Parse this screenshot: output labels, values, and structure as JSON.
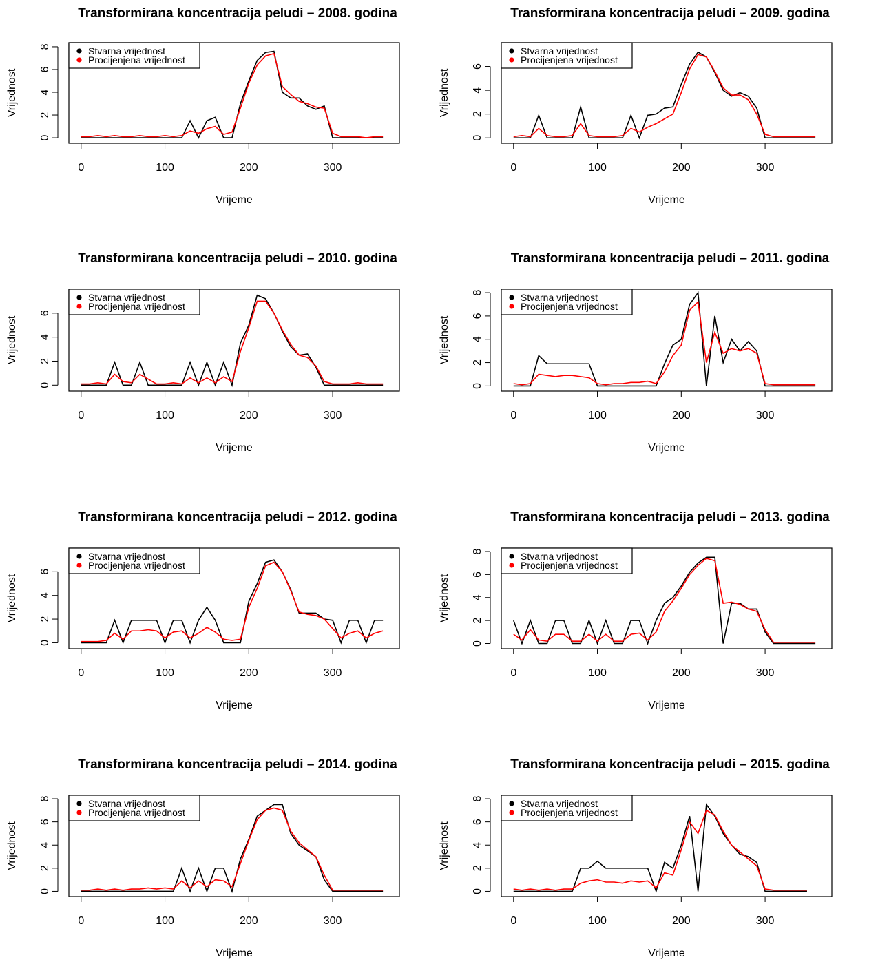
{
  "chart_data": [
    {
      "type": "line",
      "title": "Transformirana koncentracija peludi – 2008. godina",
      "xlabel": "Vrijeme",
      "ylabel": "Vrijednost",
      "x": [
        0,
        10,
        20,
        30,
        40,
        50,
        60,
        70,
        80,
        90,
        100,
        110,
        120,
        130,
        140,
        150,
        160,
        170,
        180,
        190,
        200,
        210,
        220,
        230,
        240,
        250,
        260,
        270,
        280,
        290,
        300,
        310,
        320,
        330,
        340,
        350,
        360
      ],
      "series": [
        {
          "name": "Stvarna vrijednost",
          "color": "black",
          "values": [
            0,
            0,
            0,
            0,
            0,
            0,
            0,
            0,
            0,
            0,
            0,
            0,
            0,
            1.5,
            0,
            1.5,
            1.8,
            0,
            0,
            3,
            5,
            6.8,
            7.5,
            7.6,
            4,
            3.5,
            3.5,
            2.8,
            2.5,
            2.8,
            0,
            0,
            0,
            0,
            0,
            0,
            0
          ]
        },
        {
          "name": "Procijenjena vrijednost",
          "color": "red",
          "values": [
            0.1,
            0.1,
            0.2,
            0.1,
            0.2,
            0.1,
            0.1,
            0.2,
            0.1,
            0.1,
            0.2,
            0.1,
            0.2,
            0.6,
            0.4,
            0.8,
            1,
            0.3,
            0.5,
            2.6,
            4.8,
            6.4,
            7.2,
            7.4,
            4.5,
            3.8,
            3.2,
            3,
            2.7,
            2.6,
            0.4,
            0.1,
            0.1,
            0.1,
            0,
            0.1,
            0.1
          ]
        }
      ],
      "xlim": [
        -14.6,
        379.6
      ],
      "ylim": [
        -0.48,
        8.36
      ],
      "xticks": [
        0,
        100,
        200,
        300
      ],
      "yticks": [
        0,
        2,
        4,
        6,
        8
      ],
      "legend": "topleft"
    },
    {
      "type": "line",
      "title": "Transformirana koncentracija peludi – 2009. godina",
      "xlabel": "Vrijeme",
      "ylabel": "Vrijednost",
      "x": [
        0,
        10,
        20,
        30,
        40,
        50,
        60,
        70,
        80,
        90,
        100,
        110,
        120,
        130,
        140,
        150,
        160,
        170,
        180,
        190,
        200,
        210,
        220,
        230,
        240,
        250,
        260,
        270,
        280,
        290,
        300,
        310,
        320,
        330,
        340,
        350,
        360
      ],
      "series": [
        {
          "name": "Stvarna vrijednost",
          "color": "black",
          "values": [
            0,
            0,
            0,
            1.9,
            0,
            0,
            0,
            0,
            2.6,
            0,
            0,
            0,
            0,
            0,
            1.9,
            0,
            1.9,
            2,
            2.5,
            2.6,
            4.5,
            6.2,
            7.2,
            6.8,
            5.5,
            4,
            3.5,
            3.8,
            3.5,
            2.5,
            0,
            0,
            0,
            0,
            0,
            0,
            0
          ]
        },
        {
          "name": "Procijenjena vrijednost",
          "color": "red",
          "values": [
            0.1,
            0.2,
            0.1,
            0.8,
            0.2,
            0.1,
            0.1,
            0.2,
            1.2,
            0.2,
            0.1,
            0.1,
            0.1,
            0.2,
            0.8,
            0.5,
            0.9,
            1.2,
            1.6,
            2,
            3.8,
            5.8,
            7,
            6.8,
            5.6,
            4.2,
            3.6,
            3.6,
            3.2,
            2,
            0.3,
            0.1,
            0.1,
            0.1,
            0.1,
            0.1,
            0.1
          ]
        }
      ],
      "xlim": [
        -14.6,
        379.6
      ],
      "ylim": [
        -0.45,
        8.0
      ],
      "xticks": [
        0,
        100,
        200,
        300
      ],
      "yticks": [
        0,
        2,
        4,
        6
      ],
      "legend": "topleft"
    },
    {
      "type": "line",
      "title": "Transformirana koncentracija peludi – 2010. godina",
      "xlabel": "Vrijeme",
      "ylabel": "Vrijednost",
      "x": [
        0,
        10,
        20,
        30,
        40,
        50,
        60,
        70,
        80,
        90,
        100,
        110,
        120,
        130,
        140,
        150,
        160,
        170,
        180,
        190,
        200,
        210,
        220,
        230,
        240,
        250,
        260,
        270,
        280,
        290,
        300,
        310,
        320,
        330,
        340,
        350,
        360
      ],
      "series": [
        {
          "name": "Stvarna vrijednost",
          "color": "black",
          "values": [
            0,
            0,
            0,
            0,
            1.9,
            0,
            0,
            1.9,
            0,
            0,
            0,
            0,
            0,
            1.9,
            0,
            1.9,
            0,
            1.9,
            0,
            3.5,
            5,
            7.5,
            7.2,
            6,
            4.5,
            3.2,
            2.5,
            2.6,
            1.5,
            0,
            0,
            0,
            0,
            0,
            0,
            0,
            0
          ]
        },
        {
          "name": "Procijenjena vrijednost",
          "color": "red",
          "values": [
            0.1,
            0.1,
            0.2,
            0.1,
            0.9,
            0.3,
            0.2,
            0.9,
            0.5,
            0.1,
            0.1,
            0.2,
            0.1,
            0.6,
            0.2,
            0.6,
            0.2,
            0.7,
            0.3,
            2.8,
            4.8,
            7,
            7,
            6,
            4.6,
            3.4,
            2.5,
            2.3,
            1.6,
            0.3,
            0.1,
            0.1,
            0.1,
            0.2,
            0.1,
            0.1,
            0.1
          ]
        }
      ],
      "xlim": [
        -14.6,
        379.6
      ],
      "ylim": [
        -0.5,
        8.0
      ],
      "xticks": [
        0,
        100,
        200,
        300
      ],
      "yticks": [
        0,
        2,
        4,
        6
      ],
      "legend": "topleft"
    },
    {
      "type": "line",
      "title": "Transformirana koncentracija peludi – 2011. godina",
      "xlabel": "Vrijeme",
      "ylabel": "Vrijednost",
      "x": [
        0,
        10,
        20,
        30,
        40,
        50,
        60,
        70,
        80,
        90,
        100,
        110,
        120,
        130,
        140,
        150,
        160,
        170,
        180,
        190,
        200,
        210,
        220,
        230,
        240,
        250,
        260,
        270,
        280,
        290,
        300,
        310,
        320,
        330,
        340,
        350,
        360
      ],
      "series": [
        {
          "name": "Stvarna vrijednost",
          "color": "black",
          "values": [
            0,
            0,
            0,
            2.6,
            1.9,
            1.9,
            1.9,
            1.9,
            1.9,
            1.9,
            0,
            0,
            0,
            0,
            0,
            0,
            0,
            0,
            1.9,
            3.5,
            4,
            7,
            8,
            0,
            6,
            2,
            4,
            3,
            3.8,
            3,
            0,
            0,
            0,
            0,
            0,
            0,
            0
          ]
        },
        {
          "name": "Procijenjena vrijednost",
          "color": "red",
          "values": [
            0.2,
            0.1,
            0.2,
            1,
            0.9,
            0.8,
            0.9,
            0.9,
            0.8,
            0.7,
            0.2,
            0.1,
            0.2,
            0.2,
            0.3,
            0.3,
            0.4,
            0.2,
            1.2,
            2.6,
            3.5,
            6.5,
            7.2,
            2,
            4.6,
            2.8,
            3.2,
            3,
            3.2,
            2.8,
            0.2,
            0.1,
            0.1,
            0.1,
            0.1,
            0.1,
            0.1
          ]
        }
      ],
      "xlim": [
        -14.6,
        379.6
      ],
      "ylim": [
        -0.45,
        8.3
      ],
      "xticks": [
        0,
        100,
        200,
        300
      ],
      "yticks": [
        0,
        2,
        4,
        6,
        8
      ],
      "legend": "topleft"
    },
    {
      "type": "line",
      "title": "Transformirana koncentracija peludi – 2012. godina",
      "xlabel": "Vrijeme",
      "ylabel": "Vrijednost",
      "x": [
        0,
        10,
        20,
        30,
        40,
        50,
        60,
        70,
        80,
        90,
        100,
        110,
        120,
        130,
        140,
        150,
        160,
        170,
        180,
        190,
        200,
        210,
        220,
        230,
        240,
        250,
        260,
        270,
        280,
        290,
        300,
        310,
        320,
        330,
        340,
        350,
        360
      ],
      "series": [
        {
          "name": "Stvarna vrijednost",
          "color": "black",
          "values": [
            0,
            0,
            0,
            0,
            1.9,
            0,
            1.9,
            1.9,
            1.9,
            1.9,
            0,
            1.9,
            1.9,
            0,
            1.9,
            3,
            1.9,
            0,
            0,
            0,
            3.5,
            5,
            6.8,
            7,
            6,
            4.5,
            2.5,
            2.5,
            2.5,
            2,
            1.9,
            0,
            1.9,
            1.9,
            0,
            1.9,
            1.9
          ]
        },
        {
          "name": "Procijenjena vrijednost",
          "color": "red",
          "values": [
            0.1,
            0.1,
            0.1,
            0.2,
            0.8,
            0.3,
            1,
            1,
            1.1,
            1,
            0.4,
            0.9,
            1,
            0.4,
            0.8,
            1.3,
            0.9,
            0.3,
            0.2,
            0.3,
            3,
            4.6,
            6.5,
            6.8,
            6,
            4.4,
            2.6,
            2.4,
            2.3,
            2,
            1.2,
            0.4,
            0.8,
            1,
            0.4,
            0.8,
            1
          ]
        }
      ],
      "xlim": [
        -14.6,
        379.6
      ],
      "ylim": [
        -0.5,
        8.0
      ],
      "xticks": [
        0,
        100,
        200,
        300
      ],
      "yticks": [
        0,
        2,
        4,
        6
      ],
      "legend": "topleft"
    },
    {
      "type": "line",
      "title": "Transformirana koncentracija peludi – 2013. godina",
      "xlabel": "Vrijeme",
      "ylabel": "Vrijednost",
      "x": [
        0,
        10,
        20,
        30,
        40,
        50,
        60,
        70,
        80,
        90,
        100,
        110,
        120,
        130,
        140,
        150,
        160,
        170,
        180,
        190,
        200,
        210,
        220,
        230,
        240,
        250,
        260,
        270,
        280,
        290,
        300,
        310,
        320,
        330,
        340,
        350,
        360
      ],
      "series": [
        {
          "name": "Stvarna vrijednost",
          "color": "black",
          "values": [
            2,
            0,
            2,
            0,
            0,
            2,
            2,
            0,
            0,
            2,
            0,
            2,
            0,
            0,
            2,
            2,
            0,
            2,
            3.5,
            4,
            5,
            6.2,
            7,
            7.5,
            7.5,
            0,
            3.5,
            3.5,
            3,
            3,
            1,
            0,
            0,
            0,
            0,
            0,
            0
          ]
        },
        {
          "name": "Procijenjena vrijednost",
          "color": "red",
          "values": [
            0.8,
            0.3,
            1.2,
            0.3,
            0.2,
            0.8,
            0.8,
            0.2,
            0.2,
            0.8,
            0.2,
            0.8,
            0.2,
            0.2,
            0.8,
            0.9,
            0.3,
            1,
            2.8,
            3.7,
            4.8,
            6,
            6.8,
            7.4,
            7.2,
            3.5,
            3.6,
            3.4,
            3,
            2.8,
            1.2,
            0.1,
            0.1,
            0.1,
            0.1,
            0.1,
            0.1
          ]
        }
      ],
      "xlim": [
        -14.6,
        379.6
      ],
      "ylim": [
        -0.45,
        8.3
      ],
      "xticks": [
        0,
        100,
        200,
        300
      ],
      "yticks": [
        0,
        2,
        4,
        6,
        8
      ],
      "legend": "topleft"
    },
    {
      "type": "line",
      "title": "Transformirana koncentracija peludi – 2014. godina",
      "xlabel": "Vrijeme",
      "ylabel": "Vrijednost",
      "x": [
        0,
        10,
        20,
        30,
        40,
        50,
        60,
        70,
        80,
        90,
        100,
        110,
        120,
        130,
        140,
        150,
        160,
        170,
        180,
        190,
        200,
        210,
        220,
        230,
        240,
        250,
        260,
        270,
        280,
        290,
        300,
        310,
        320,
        330,
        340,
        350,
        360
      ],
      "series": [
        {
          "name": "Stvarna vrijednost",
          "color": "black",
          "values": [
            0,
            0,
            0,
            0,
            0,
            0,
            0,
            0,
            0,
            0,
            0,
            0,
            2,
            0,
            2,
            0,
            2,
            2,
            0,
            2.8,
            4.5,
            6.5,
            7,
            7.5,
            7.5,
            5,
            4,
            3.5,
            3,
            1,
            0,
            0,
            0,
            0,
            0,
            0,
            0
          ]
        },
        {
          "name": "Procijenjena vrijednost",
          "color": "red",
          "values": [
            0.1,
            0.1,
            0.2,
            0.1,
            0.2,
            0.1,
            0.2,
            0.2,
            0.3,
            0.2,
            0.3,
            0.2,
            0.9,
            0.3,
            0.9,
            0.4,
            1,
            0.9,
            0.4,
            2.4,
            4.4,
            6.2,
            7,
            7.2,
            7,
            5.2,
            4.2,
            3.6,
            3,
            1.4,
            0.1,
            0.1,
            0.1,
            0.1,
            0.1,
            0.1,
            0.1
          ]
        }
      ],
      "xlim": [
        -14.6,
        379.6
      ],
      "ylim": [
        -0.45,
        8.3
      ],
      "xticks": [
        0,
        100,
        200,
        300
      ],
      "yticks": [
        0,
        2,
        4,
        6,
        8
      ],
      "legend": "topleft"
    },
    {
      "type": "line",
      "title": "Transformirana koncentracija peludi – 2015. godina",
      "xlabel": "Vrijeme",
      "ylabel": "Vrijednost",
      "x": [
        0,
        10,
        20,
        30,
        40,
        50,
        60,
        70,
        80,
        90,
        100,
        110,
        120,
        130,
        140,
        150,
        160,
        170,
        180,
        190,
        200,
        210,
        220,
        230,
        240,
        250,
        260,
        270,
        280,
        290,
        300,
        310,
        320,
        330,
        340,
        350
      ],
      "series": [
        {
          "name": "Stvarna vrijednost",
          "color": "black",
          "values": [
            0,
            0,
            0,
            0,
            0,
            0,
            0,
            0,
            2,
            2,
            2.6,
            2,
            2,
            2,
            2,
            2,
            2,
            0,
            2.5,
            2,
            4,
            6.5,
            0,
            7.5,
            6.5,
            5,
            4,
            3.2,
            3,
            2.5,
            0,
            0,
            0,
            0,
            0,
            0
          ]
        },
        {
          "name": "Procijenjena vrijednost",
          "color": "red",
          "values": [
            0.2,
            0.1,
            0.2,
            0.1,
            0.2,
            0.1,
            0.2,
            0.2,
            0.7,
            0.9,
            1,
            0.8,
            0.8,
            0.7,
            0.9,
            0.8,
            0.9,
            0.3,
            1.6,
            1.4,
            3.6,
            6,
            5,
            7,
            6.6,
            5.2,
            4,
            3.4,
            2.8,
            2.2,
            0.2,
            0.1,
            0.1,
            0.1,
            0.1,
            0.1
          ]
        }
      ],
      "xlim": [
        -14.6,
        379.6
      ],
      "ylim": [
        -0.45,
        8.3
      ],
      "xticks": [
        0,
        100,
        200,
        300
      ],
      "yticks": [
        0,
        2,
        4,
        6,
        8
      ],
      "legend": "topleft"
    }
  ]
}
